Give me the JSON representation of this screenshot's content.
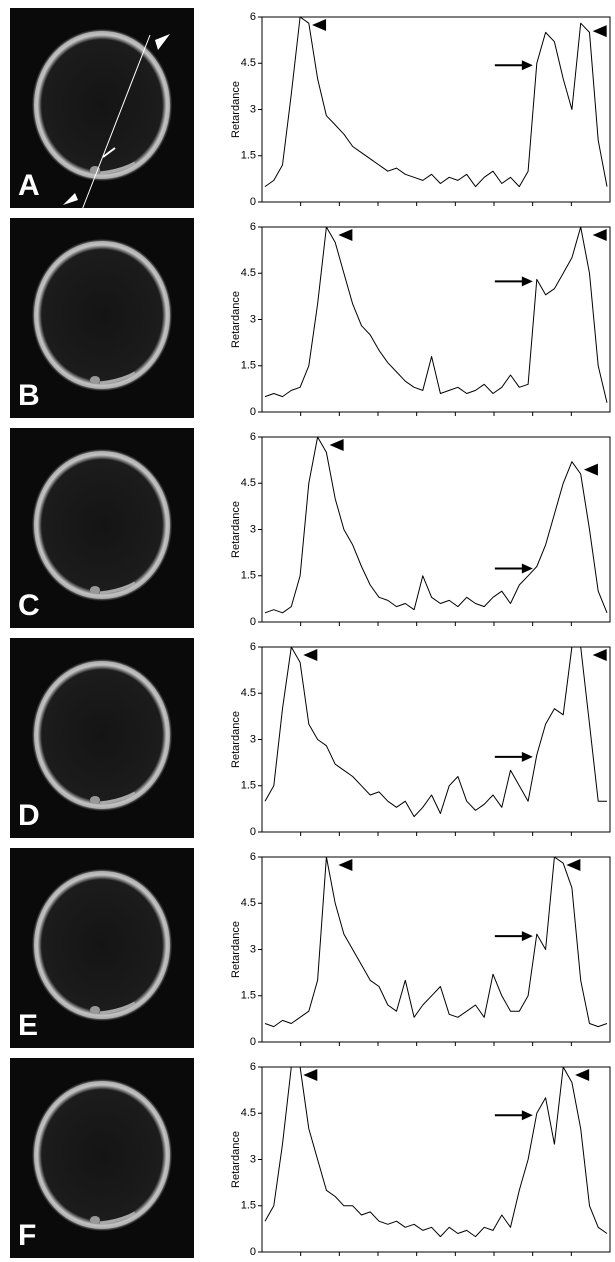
{
  "chart_data": [
    {
      "type": "line",
      "label": "A",
      "ylabel": "Retardance",
      "color": "#000000",
      "ylim": [
        0,
        6
      ],
      "yticks": [
        0,
        1.5,
        3,
        4.5,
        6
      ],
      "values": [
        0.5,
        0.7,
        1.2,
        3.5,
        6,
        5.8,
        4,
        2.8,
        2.5,
        2.2,
        1.8,
        1.6,
        1.4,
        1.2,
        1.0,
        1.1,
        0.9,
        0.8,
        0.7,
        0.9,
        0.6,
        0.8,
        0.7,
        0.9,
        0.5,
        0.8,
        1.0,
        0.6,
        0.8,
        0.5,
        1.0,
        4.5,
        5.5,
        5.2,
        4.0,
        3.0,
        5.8,
        5.5,
        2.0,
        0.5
      ]
    },
    {
      "type": "line",
      "label": "B",
      "ylabel": "Retardance",
      "color": "#000000",
      "ylim": [
        0,
        6
      ],
      "yticks": [
        0,
        1.5,
        3,
        4.5,
        6
      ],
      "values": [
        0.5,
        0.6,
        0.5,
        0.7,
        0.8,
        1.5,
        3.5,
        6,
        5.5,
        4.5,
        3.5,
        2.8,
        2.5,
        2.0,
        1.6,
        1.3,
        1.0,
        0.8,
        0.7,
        1.8,
        0.6,
        0.7,
        0.8,
        0.6,
        0.7,
        0.9,
        0.6,
        0.8,
        1.2,
        0.8,
        0.9,
        4.3,
        3.8,
        4.0,
        4.5,
        5.0,
        6,
        4.5,
        1.5,
        0.3
      ]
    },
    {
      "type": "line",
      "label": "C",
      "ylabel": "Retardance",
      "color": "#000000",
      "ylim": [
        0,
        6
      ],
      "yticks": [
        0,
        1.5,
        3,
        4.5,
        6
      ],
      "values": [
        0.3,
        0.4,
        0.3,
        0.5,
        1.5,
        4.5,
        6,
        5.5,
        4.0,
        3.0,
        2.5,
        1.8,
        1.2,
        0.8,
        0.7,
        0.5,
        0.6,
        0.4,
        1.5,
        0.8,
        0.6,
        0.7,
        0.5,
        0.8,
        0.6,
        0.5,
        0.8,
        1.0,
        0.6,
        1.2,
        1.5,
        1.8,
        2.5,
        3.5,
        4.5,
        5.2,
        4.8,
        3.0,
        1.0,
        0.3
      ]
    },
    {
      "type": "line",
      "label": "D",
      "ylabel": "Retardance",
      "color": "#000000",
      "ylim": [
        0,
        6
      ],
      "yticks": [
        0,
        1.5,
        3,
        4.5,
        6
      ],
      "values": [
        1.0,
        1.5,
        4.0,
        6,
        5.5,
        3.5,
        3.0,
        2.8,
        2.2,
        2.0,
        1.8,
        1.5,
        1.2,
        1.3,
        1.0,
        0.8,
        1.0,
        0.5,
        0.8,
        1.2,
        0.6,
        1.5,
        1.8,
        1.0,
        0.7,
        0.9,
        1.2,
        0.8,
        2.0,
        1.5,
        1.0,
        2.5,
        3.5,
        4.0,
        3.8,
        6,
        6,
        3.5,
        1.0,
        1.0
      ]
    },
    {
      "type": "line",
      "label": "E",
      "ylabel": "Retardance",
      "color": "#000000",
      "ylim": [
        0,
        6
      ],
      "yticks": [
        0,
        1.5,
        3,
        4.5,
        6
      ],
      "values": [
        0.6,
        0.5,
        0.7,
        0.6,
        0.8,
        1.0,
        2.0,
        6,
        4.5,
        3.5,
        3.0,
        2.5,
        2.0,
        1.8,
        1.2,
        1.0,
        2.0,
        0.8,
        1.2,
        1.5,
        1.8,
        0.9,
        0.8,
        1.0,
        1.2,
        0.8,
        2.2,
        1.5,
        1.0,
        1.0,
        1.5,
        3.5,
        3.0,
        6,
        5.8,
        5.0,
        2.0,
        0.6,
        0.5,
        0.6
      ]
    },
    {
      "type": "line",
      "label": "F",
      "ylabel": "Retardance",
      "color": "#000000",
      "ylim": [
        0,
        6
      ],
      "yticks": [
        0,
        1.5,
        3,
        4.5,
        6
      ],
      "values": [
        1.0,
        1.5,
        3.5,
        6,
        6,
        4.0,
        3.0,
        2.0,
        1.8,
        1.5,
        1.5,
        1.2,
        1.3,
        1.0,
        0.9,
        1.0,
        0.8,
        0.9,
        0.7,
        0.8,
        0.5,
        0.8,
        0.6,
        0.7,
        0.5,
        0.8,
        0.7,
        1.2,
        0.8,
        2.0,
        3.0,
        4.5,
        5.0,
        3.5,
        6,
        5.5,
        4.0,
        1.5,
        0.8,
        0.6
      ]
    }
  ]
}
